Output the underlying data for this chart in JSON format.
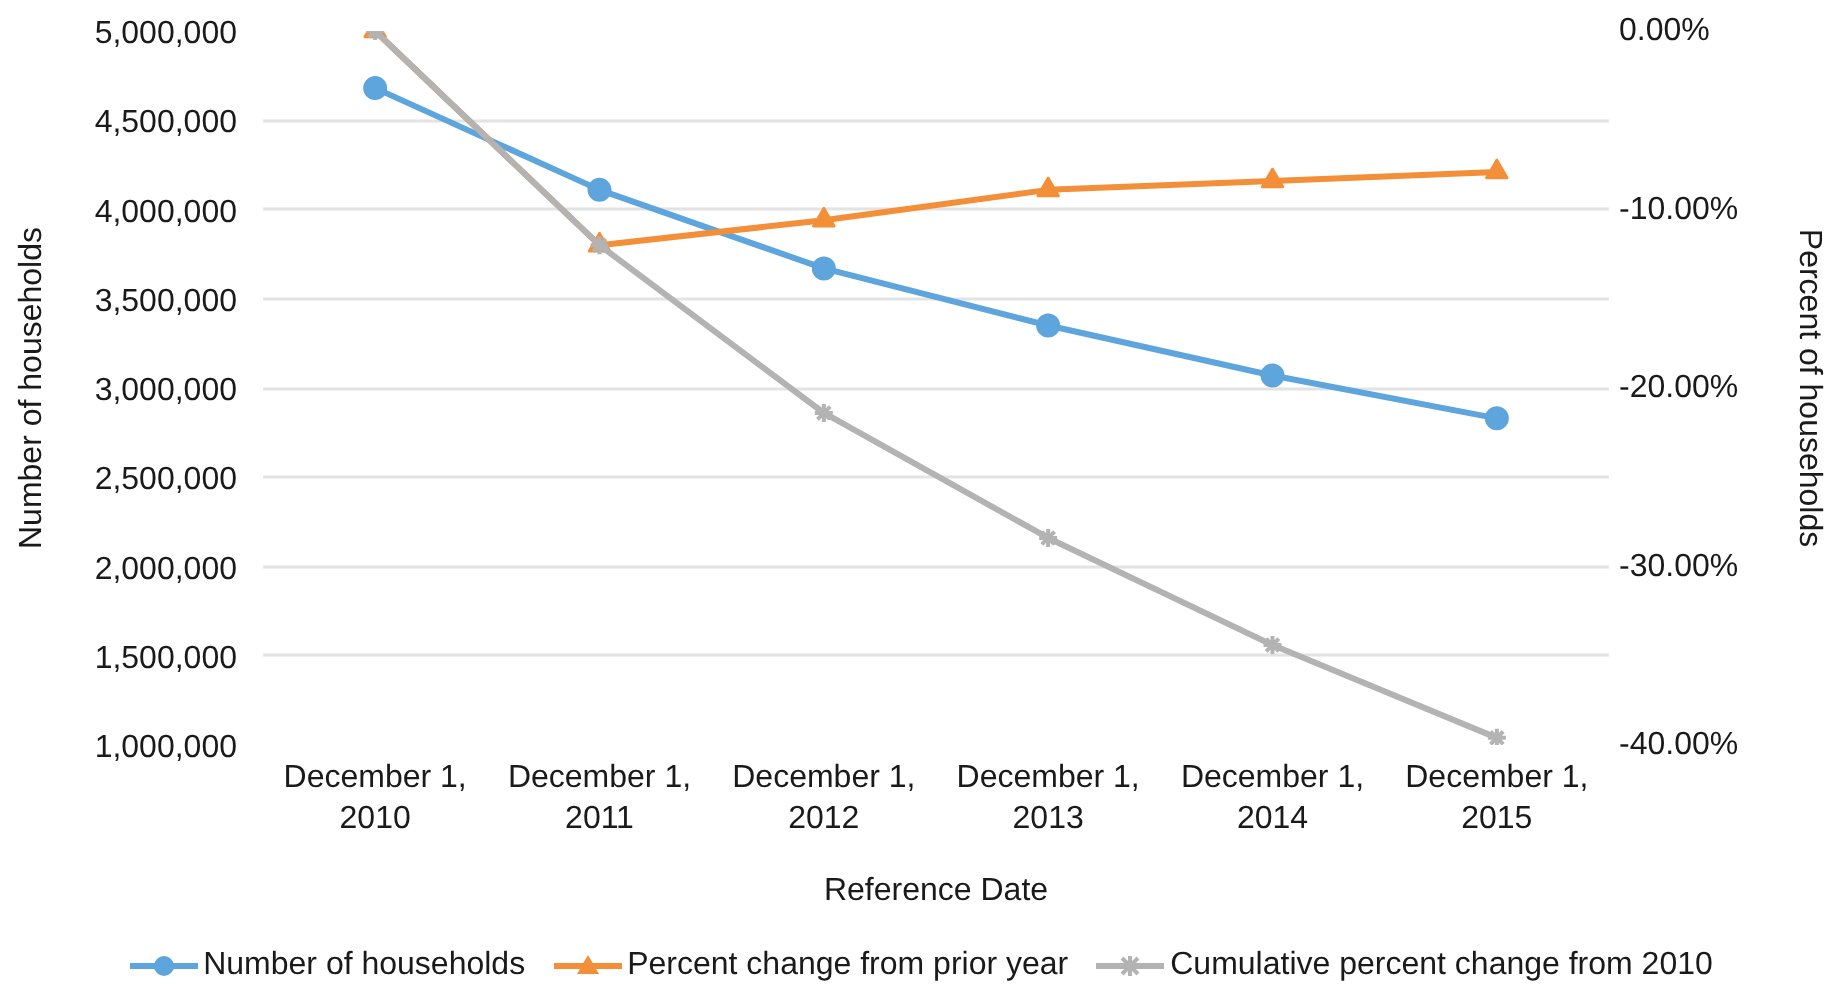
{
  "chart_data": {
    "type": "line",
    "xlabel": "Reference Date",
    "ylabel": "Number of households",
    "y2label": "Percent of households",
    "categories": [
      "December 1, 2010",
      "December 1, 2011",
      "December 1, 2012",
      "December 1, 2013",
      "December 1, 2014",
      "December 1, 2015"
    ],
    "series": [
      {
        "name": "Number of households",
        "color": "#5da5dc",
        "marker": "circle",
        "values": [
          4680000,
          4110000,
          3670000,
          3350000,
          3070000,
          2830000
        ]
      },
      {
        "name": "Percent change from prior year",
        "color": "#f28f38",
        "marker": "triangle",
        "axis": "y2",
        "values": [
          0,
          -12.0,
          -10.6,
          -8.9,
          -8.4,
          -7.9
        ]
      },
      {
        "name": "Cumulative percent change from 2010",
        "color": "#b3b3b3",
        "marker": "cross",
        "axis": "y2",
        "values": [
          0,
          -12.0,
          -21.4,
          -28.4,
          -34.4,
          -39.6
        ]
      }
    ],
    "ylim": [
      1000000,
      5000000
    ],
    "yticks": [
      {
        "value": 1000000,
        "label": "1,000,000"
      },
      {
        "value": 1500000,
        "label": "1,500,000"
      },
      {
        "value": 2000000,
        "label": "2,000,000"
      },
      {
        "value": 2500000,
        "label": "2,500,000"
      },
      {
        "value": 3000000,
        "label": "3,000,000"
      },
      {
        "value": 3500000,
        "label": "3,500,000"
      },
      {
        "value": 4000000,
        "label": "4,000,000"
      },
      {
        "value": 4500000,
        "label": "4,500,000"
      },
      {
        "value": 5000000,
        "label": "5,000,000"
      }
    ],
    "y2lim": [
      -40,
      0
    ],
    "y2ticks": [
      {
        "value": -40,
        "label": "-40.00%"
      },
      {
        "value": -30,
        "label": "-30.00%"
      },
      {
        "value": -20,
        "label": "-20.00%"
      },
      {
        "value": -10,
        "label": "-10.00%"
      },
      {
        "value": 0,
        "label": "0.00%"
      }
    ],
    "grid": "y",
    "legend": "bottom",
    "line_style": "solid"
  }
}
